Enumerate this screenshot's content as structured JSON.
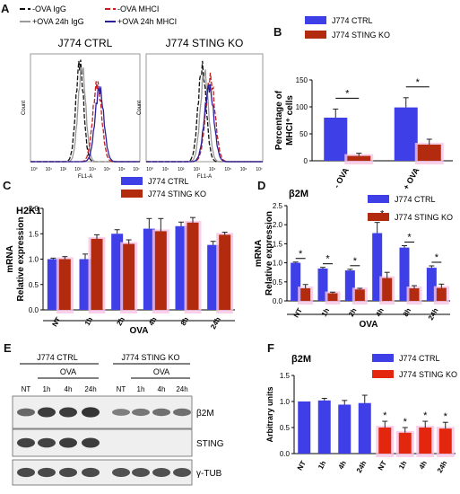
{
  "panels": {
    "A": "A",
    "B": "B",
    "C": "C",
    "D": "D",
    "E": "E",
    "F": "F"
  },
  "colors": {
    "ctrl": "#3f3fe8",
    "ko": "#b22b0f",
    "ko_bar_F": "#e3270f",
    "err": "#222222",
    "halo": "#f7c3e4",
    "blot_bg": "#efefef",
    "blot_band": "#1a1a1a"
  },
  "flow": {
    "legend": [
      {
        "label": "-OVA IgG",
        "color": "#111111",
        "dash": "6 3"
      },
      {
        "label": "-OVA MHCI",
        "color": "#c41e1e",
        "dash": "6 3"
      },
      {
        "label": "+OVA 24h IgG",
        "color": "#9a9a9a",
        "dash": ""
      },
      {
        "label": "+OVA 24h MHCI",
        "color": "#2a1f9a",
        "dash": ""
      }
    ],
    "titles": [
      "J774 CTRL",
      "J774 STING KO"
    ],
    "xlabel": "FL1-A",
    "ylabel": "Count",
    "xticks": [
      "10⁰",
      "10¹",
      "10²",
      "10³",
      "10⁴",
      "10⁵",
      "10⁶",
      "10⁷"
    ]
  },
  "western": {
    "groups": [
      "J774 CTRL",
      "J774 STING KO"
    ],
    "ova": "OVA",
    "lanes": [
      "NT",
      "1h",
      "4h",
      "24h",
      "NT",
      "1h",
      "4h",
      "24h"
    ],
    "bands": [
      "β2M",
      "STING",
      "γ-TUB"
    ],
    "intensity": {
      "β2M": [
        0.55,
        0.85,
        0.85,
        0.9,
        0.4,
        0.45,
        0.5,
        0.5
      ],
      "STING": [
        0.8,
        0.8,
        0.85,
        0.85,
        0,
        0,
        0,
        0
      ],
      "γ-TUB": [
        0.75,
        0.75,
        0.75,
        0.75,
        0.7,
        0.7,
        0.7,
        0.7
      ]
    }
  },
  "chart_data": [
    {
      "panel": "B",
      "type": "bar",
      "categories": [
        "- OVA",
        "+ OVA"
      ],
      "series": [
        {
          "name": "J774 CTRL",
          "values": [
            80,
            99
          ],
          "errors": [
            16,
            18
          ]
        },
        {
          "name": "J774 STING KO",
          "values": [
            9,
            30
          ],
          "errors": [
            5,
            10
          ]
        }
      ],
      "ylabel": "Percentage of MHCI⁺ cells",
      "ylim": [
        0,
        150
      ],
      "yticks": [
        "0",
        "50",
        "100",
        "150"
      ],
      "significance": [
        "*",
        "*"
      ]
    },
    {
      "panel": "C",
      "type": "bar",
      "title": "H2K1",
      "categories": [
        "NT",
        "1h",
        "2h",
        "4h",
        "8h",
        "24h"
      ],
      "series": [
        {
          "name": "J774 CTRL",
          "values": [
            1.0,
            1.0,
            1.5,
            1.6,
            1.65,
            1.28
          ],
          "errors": [
            0.02,
            0.1,
            0.08,
            0.2,
            0.08,
            0.07
          ]
        },
        {
          "name": "J774 STING KO",
          "values": [
            1.0,
            1.4,
            1.3,
            1.55,
            1.72,
            1.48
          ],
          "errors": [
            0.05,
            0.08,
            0.08,
            0.25,
            0.1,
            0.05
          ]
        }
      ],
      "ylabel": "mRNA Relative expression",
      "xlabel": "OVA",
      "ylim": [
        0,
        2.0
      ],
      "yticks": [
        "0.0",
        "0.5",
        "1.0",
        "1.5",
        "2.0"
      ]
    },
    {
      "panel": "D",
      "type": "bar",
      "title": "β2M",
      "categories": [
        "NT",
        "1h",
        "2h",
        "4h",
        "8h",
        "24h"
      ],
      "series": [
        {
          "name": "J774 CTRL",
          "values": [
            1.0,
            0.85,
            0.8,
            1.78,
            1.4,
            0.87
          ],
          "errors": [
            0.02,
            0.03,
            0.03,
            0.28,
            0.05,
            0.05
          ]
        },
        {
          "name": "J774 STING KO",
          "values": [
            0.33,
            0.2,
            0.3,
            0.6,
            0.33,
            0.34
          ],
          "errors": [
            0.1,
            0.03,
            0.03,
            0.15,
            0.07,
            0.1
          ]
        }
      ],
      "ylabel": "mRNA Relative expression",
      "xlabel": "OVA",
      "ylim": [
        0,
        2.5
      ],
      "yticks": [
        "0.0",
        "0.5",
        "1.0",
        "1.5",
        "2.0",
        "2.5"
      ],
      "significance": [
        "*",
        "*",
        "*",
        "*",
        "*",
        "*"
      ]
    },
    {
      "panel": "F",
      "type": "bar",
      "title": "β2M",
      "categories": [
        "NT",
        "1h",
        "4h",
        "24h",
        "NT",
        "1h",
        "4h",
        "24h"
      ],
      "series": [
        {
          "name": "J774 CTRL",
          "values": [
            1.0,
            1.02,
            0.94,
            0.97,
            null,
            null,
            null,
            null
          ],
          "errors": [
            0,
            0.04,
            0.08,
            0.15,
            null,
            null,
            null,
            null
          ]
        },
        {
          "name": "J774 STING KO",
          "values": [
            null,
            null,
            null,
            null,
            0.5,
            0.4,
            0.5,
            0.48
          ],
          "errors": [
            null,
            null,
            null,
            null,
            0.12,
            0.1,
            0.12,
            0.12
          ]
        }
      ],
      "ylabel": "Arbitrary units",
      "ylim": [
        0,
        1.5
      ],
      "yticks": [
        "0.0",
        "0.5",
        "1.0",
        "1.5"
      ],
      "significance": [
        "",
        "",
        "",
        "",
        "*",
        "*",
        "*",
        "*"
      ]
    }
  ]
}
